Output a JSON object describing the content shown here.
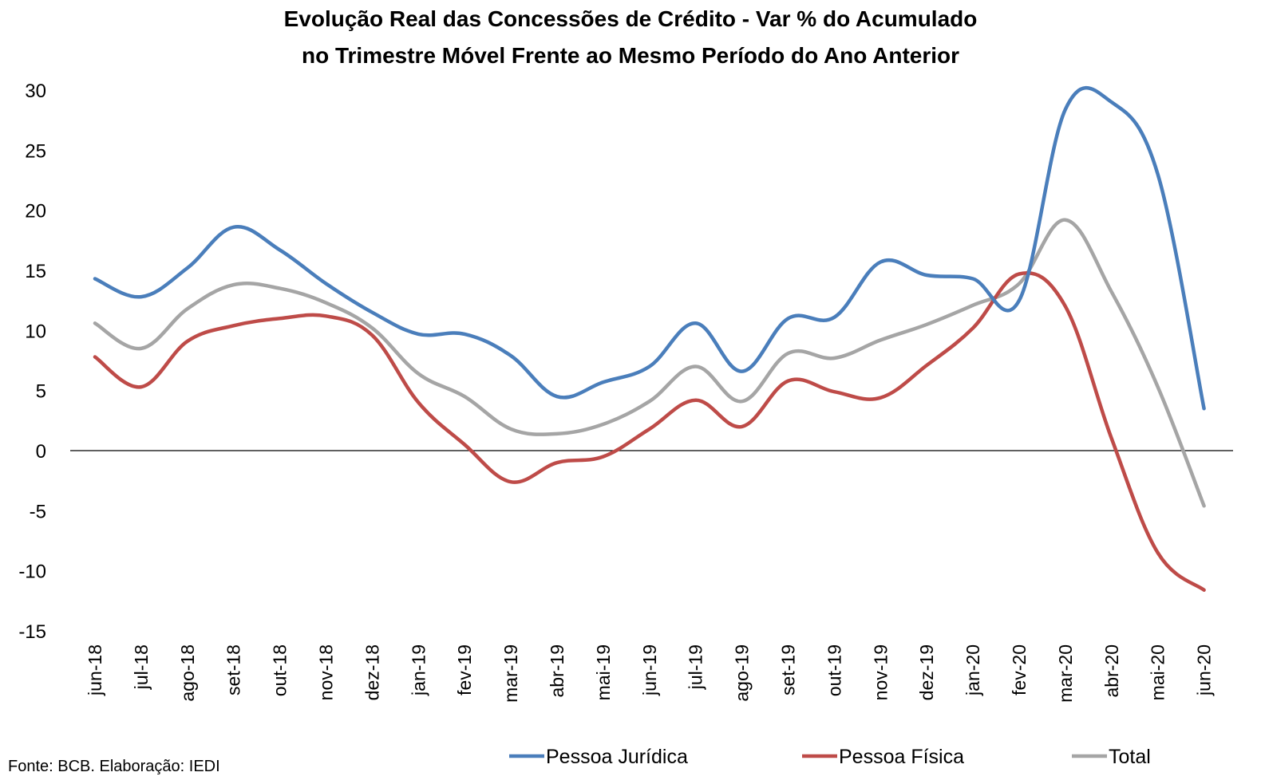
{
  "chart_data": {
    "type": "line",
    "title_line1": "Evolução Real das Concessões de Crédito - Var % do Acumulado",
    "title_line2": "no Trimestre Móvel Frente ao Mesmo Período do Ano Anterior",
    "categories": [
      "jun-18",
      "jul-18",
      "ago-18",
      "set-18",
      "out-18",
      "nov-18",
      "dez-18",
      "jan-19",
      "fev-19",
      "mar-19",
      "abr-19",
      "mai-19",
      "jun-19",
      "jul-19",
      "ago-19",
      "set-19",
      "out-19",
      "nov-19",
      "dez-19",
      "jan-20",
      "fev-20",
      "mar-20",
      "abr-20",
      "mai-20",
      "jun-20"
    ],
    "ylim": [
      -15,
      30
    ],
    "yticks": [
      30,
      25,
      20,
      15,
      10,
      5,
      0,
      -5,
      -10,
      -15
    ],
    "grid": false,
    "legend_position": "bottom",
    "series": [
      {
        "name": "Pessoa Jurídica",
        "color": "#4a7ebb",
        "values": [
          14.3,
          12.8,
          15.2,
          18.6,
          16.7,
          13.9,
          11.5,
          9.7,
          9.7,
          7.9,
          4.5,
          5.7,
          7.0,
          10.6,
          6.6,
          11.0,
          11.1,
          15.7,
          14.6,
          14.3,
          12.5,
          28.4,
          29.0,
          23.0,
          3.5
        ]
      },
      {
        "name": "Pessoa Física",
        "color": "#be4b48",
        "values": [
          7.8,
          5.3,
          9.1,
          10.4,
          11.0,
          11.2,
          9.6,
          4.0,
          0.5,
          -2.6,
          -1.0,
          -0.5,
          1.8,
          4.2,
          2.0,
          5.8,
          4.9,
          4.4,
          7.1,
          10.2,
          14.7,
          12.0,
          1.0,
          -8.5,
          -11.6
        ]
      },
      {
        "name": "Total",
        "color": "#a5a5a5",
        "values": [
          10.6,
          8.5,
          11.8,
          13.8,
          13.5,
          12.3,
          10.2,
          6.4,
          4.5,
          1.8,
          1.4,
          2.2,
          4.1,
          7.0,
          4.1,
          8.1,
          7.7,
          9.2,
          10.5,
          12.1,
          13.9,
          19.2,
          13.2,
          5.3,
          -4.6
        ]
      }
    ],
    "source": "Fonte: BCB. Elaboração: IEDI"
  }
}
